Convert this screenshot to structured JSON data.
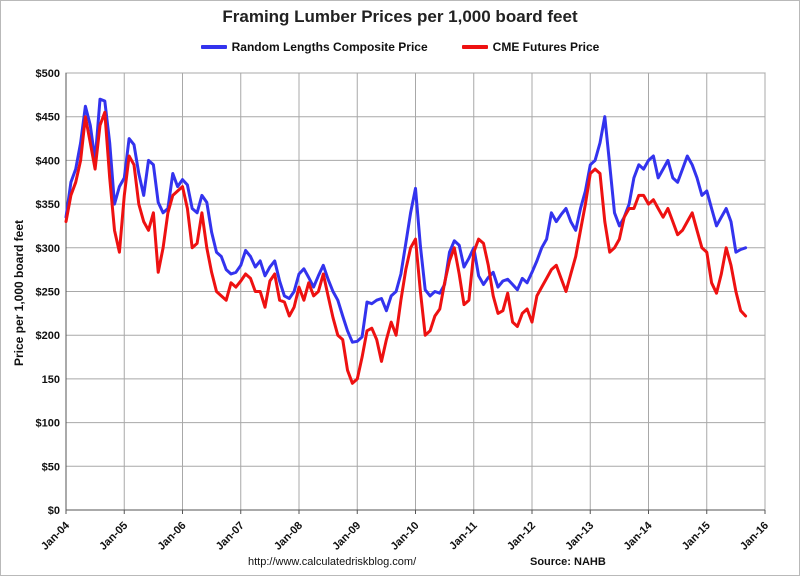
{
  "chart_data": {
    "type": "line",
    "title": "Framing Lumber Prices per 1,000 board feet",
    "ylabel": "Price per 1,000 board feet",
    "xlabel": "",
    "ylim": [
      0,
      500
    ],
    "xlim": [
      "2004-01",
      "2016-01"
    ],
    "yticks": [
      "$0",
      "$50",
      "$100",
      "150",
      "$200",
      "$250",
      "$300",
      "$350",
      "$400",
      "$450",
      "$500"
    ],
    "xticks": [
      "Jan-04",
      "Jan-05",
      "Jan-06",
      "Jan-07",
      "Jan-08",
      "Jan-09",
      "Jan-10",
      "Jan-11",
      "Jan-12",
      "Jan-13",
      "Jan-14",
      "Jan-15",
      "Jan-16"
    ],
    "grid": true,
    "legend": "top-center",
    "series": [
      {
        "name": "Random Lengths Composite Price",
        "color": "#3333ee",
        "x": [
          "2004-01",
          "2004-02",
          "2004-03",
          "2004-04",
          "2004-05",
          "2004-06",
          "2004-07",
          "2004-08",
          "2004-09",
          "2004-10",
          "2004-11",
          "2004-12",
          "2005-01",
          "2005-02",
          "2005-03",
          "2005-04",
          "2005-05",
          "2005-06",
          "2005-07",
          "2005-08",
          "2005-09",
          "2005-10",
          "2005-11",
          "2005-12",
          "2006-01",
          "2006-02",
          "2006-03",
          "2006-04",
          "2006-05",
          "2006-06",
          "2006-07",
          "2006-08",
          "2006-09",
          "2006-10",
          "2006-11",
          "2006-12",
          "2007-01",
          "2007-02",
          "2007-03",
          "2007-04",
          "2007-05",
          "2007-06",
          "2007-07",
          "2007-08",
          "2007-09",
          "2007-10",
          "2007-11",
          "2007-12",
          "2008-01",
          "2008-02",
          "2008-03",
          "2008-04",
          "2008-05",
          "2008-06",
          "2008-07",
          "2008-08",
          "2008-09",
          "2008-10",
          "2008-11",
          "2008-12",
          "2009-01",
          "2009-02",
          "2009-03",
          "2009-04",
          "2009-05",
          "2009-06",
          "2009-07",
          "2009-08",
          "2009-09",
          "2009-10",
          "2009-11",
          "2009-12",
          "2010-01",
          "2010-02",
          "2010-03",
          "2010-04",
          "2010-05",
          "2010-06",
          "2010-07",
          "2010-08",
          "2010-09",
          "2010-10",
          "2010-11",
          "2010-12",
          "2011-01",
          "2011-02",
          "2011-03",
          "2011-04",
          "2011-05",
          "2011-06",
          "2011-07",
          "2011-08",
          "2011-09",
          "2011-10",
          "2011-11",
          "2011-12",
          "2012-01",
          "2012-02",
          "2012-03",
          "2012-04",
          "2012-05",
          "2012-06",
          "2012-07",
          "2012-08",
          "2012-09",
          "2012-10",
          "2012-11",
          "2012-12",
          "2013-01",
          "2013-02",
          "2013-03",
          "2013-04",
          "2013-05",
          "2013-06",
          "2013-07",
          "2013-08",
          "2013-09",
          "2013-10",
          "2013-11",
          "2013-12",
          "2014-01",
          "2014-02",
          "2014-03",
          "2014-04",
          "2014-05",
          "2014-06",
          "2014-07",
          "2014-08",
          "2014-09",
          "2014-10",
          "2014-11",
          "2014-12",
          "2015-01",
          "2015-02",
          "2015-03",
          "2015-04",
          "2015-05",
          "2015-06",
          "2015-07",
          "2015-08",
          "2015-09"
        ],
        "values": [
          335,
          375,
          390,
          420,
          462,
          440,
          400,
          470,
          468,
          420,
          350,
          370,
          380,
          425,
          418,
          385,
          360,
          400,
          395,
          352,
          340,
          345,
          385,
          370,
          378,
          372,
          345,
          340,
          360,
          352,
          318,
          295,
          290,
          275,
          270,
          272,
          280,
          297,
          290,
          278,
          285,
          268,
          278,
          285,
          262,
          245,
          242,
          250,
          270,
          276,
          266,
          255,
          268,
          280,
          264,
          250,
          240,
          222,
          205,
          192,
          193,
          198,
          238,
          236,
          240,
          242,
          228,
          245,
          250,
          270,
          305,
          340,
          368,
          302,
          252,
          245,
          250,
          248,
          258,
          295,
          308,
          303,
          278,
          288,
          300,
          268,
          258,
          266,
          272,
          255,
          262,
          264,
          258,
          252,
          265,
          260,
          272,
          285,
          300,
          310,
          340,
          330,
          338,
          345,
          330,
          320,
          345,
          365,
          395,
          400,
          420,
          450,
          395,
          340,
          325,
          335,
          350,
          380,
          395,
          390,
          400,
          405,
          380,
          390,
          400,
          380,
          375,
          390,
          405,
          395,
          380,
          360,
          365,
          345,
          325,
          335,
          345,
          330,
          295,
          298,
          300
        ]
      },
      {
        "name": "CME Futures Price",
        "color": "#ee1111",
        "x": [
          "2004-01",
          "2004-02",
          "2004-03",
          "2004-04",
          "2004-05",
          "2004-06",
          "2004-07",
          "2004-08",
          "2004-09",
          "2004-10",
          "2004-11",
          "2004-12",
          "2005-01",
          "2005-02",
          "2005-03",
          "2005-04",
          "2005-05",
          "2005-06",
          "2005-07",
          "2005-08",
          "2005-09",
          "2005-10",
          "2005-11",
          "2005-12",
          "2006-01",
          "2006-02",
          "2006-03",
          "2006-04",
          "2006-05",
          "2006-06",
          "2006-07",
          "2006-08",
          "2006-09",
          "2006-10",
          "2006-11",
          "2006-12",
          "2007-01",
          "2007-02",
          "2007-03",
          "2007-04",
          "2007-05",
          "2007-06",
          "2007-07",
          "2007-08",
          "2007-09",
          "2007-10",
          "2007-11",
          "2007-12",
          "2008-01",
          "2008-02",
          "2008-03",
          "2008-04",
          "2008-05",
          "2008-06",
          "2008-07",
          "2008-08",
          "2008-09",
          "2008-10",
          "2008-11",
          "2008-12",
          "2009-01",
          "2009-02",
          "2009-03",
          "2009-04",
          "2009-05",
          "2009-06",
          "2009-07",
          "2009-08",
          "2009-09",
          "2009-10",
          "2009-11",
          "2009-12",
          "2010-01",
          "2010-02",
          "2010-03",
          "2010-04",
          "2010-05",
          "2010-06",
          "2010-07",
          "2010-08",
          "2010-09",
          "2010-10",
          "2010-11",
          "2010-12",
          "2011-01",
          "2011-02",
          "2011-03",
          "2011-04",
          "2011-05",
          "2011-06",
          "2011-07",
          "2011-08",
          "2011-09",
          "2011-10",
          "2011-11",
          "2011-12",
          "2012-01",
          "2012-02",
          "2012-03",
          "2012-04",
          "2012-05",
          "2012-06",
          "2012-07",
          "2012-08",
          "2012-09",
          "2012-10",
          "2012-11",
          "2012-12",
          "2013-01",
          "2013-02",
          "2013-03",
          "2013-04",
          "2013-05",
          "2013-06",
          "2013-07",
          "2013-08",
          "2013-09",
          "2013-10",
          "2013-11",
          "2013-12",
          "2014-01",
          "2014-02",
          "2014-03",
          "2014-04",
          "2014-05",
          "2014-06",
          "2014-07",
          "2014-08",
          "2014-09",
          "2014-10",
          "2014-11",
          "2014-12",
          "2015-01",
          "2015-02",
          "2015-03",
          "2015-04",
          "2015-05",
          "2015-06",
          "2015-07",
          "2015-08",
          "2015-09"
        ],
        "values": [
          330,
          360,
          375,
          400,
          450,
          420,
          390,
          440,
          455,
          380,
          320,
          295,
          360,
          405,
          395,
          350,
          330,
          320,
          340,
          272,
          300,
          340,
          360,
          365,
          370,
          345,
          300,
          305,
          340,
          300,
          272,
          250,
          245,
          240,
          260,
          255,
          262,
          270,
          265,
          250,
          250,
          232,
          262,
          270,
          240,
          238,
          222,
          232,
          255,
          240,
          260,
          245,
          250,
          270,
          245,
          220,
          200,
          195,
          160,
          145,
          150,
          175,
          205,
          208,
          195,
          170,
          195,
          215,
          200,
          240,
          275,
          300,
          310,
          250,
          200,
          205,
          222,
          230,
          260,
          285,
          300,
          270,
          235,
          240,
          295,
          310,
          305,
          280,
          245,
          225,
          228,
          248,
          215,
          210,
          225,
          230,
          215,
          245,
          255,
          265,
          275,
          280,
          265,
          250,
          270,
          290,
          320,
          350,
          385,
          390,
          385,
          330,
          295,
          300,
          310,
          335,
          345,
          345,
          360,
          360,
          350,
          355,
          345,
          335,
          345,
          330,
          315,
          320,
          330,
          340,
          320,
          300,
          295,
          260,
          248,
          270,
          300,
          280,
          250,
          228,
          222
        ]
      }
    ]
  },
  "footer": {
    "url": "http://www.calculatedriskblog.com/",
    "source": "Source: NAHB"
  }
}
